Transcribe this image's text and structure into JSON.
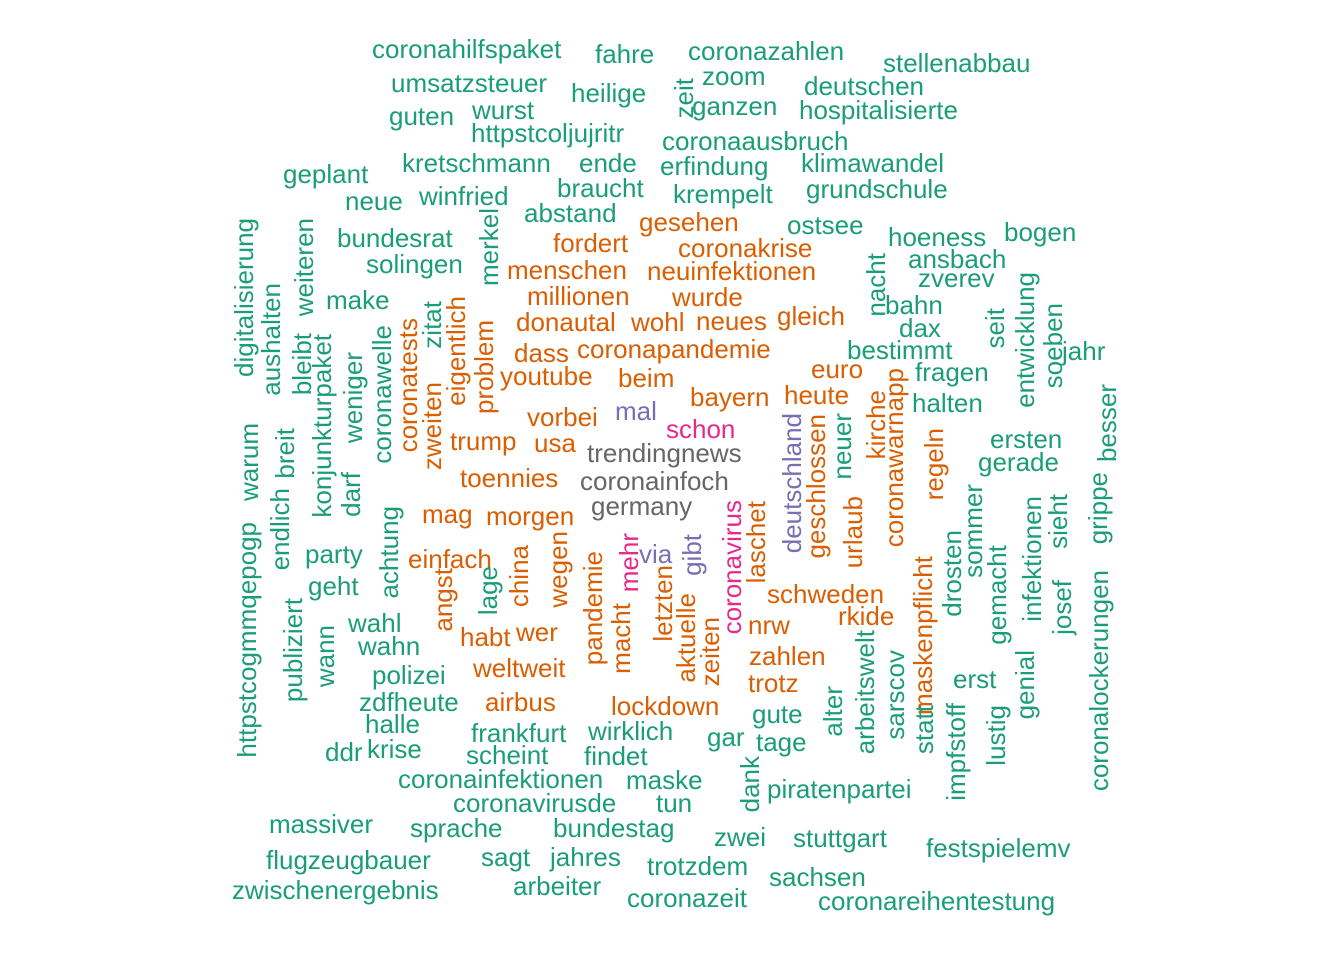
{
  "colors": {
    "green": "#1B9E77",
    "orange": "#D95F02",
    "purple": "#7570B3",
    "pink": "#E7298A",
    "gray": "#666666"
  },
  "words": [
    "coronahilfspaket",
    "fahre",
    "coronazahlen",
    "stellenabbau",
    "umsatzsteuer",
    "zoom",
    "heilige",
    "deutschen",
    "zeit",
    "wurst",
    "ganzen",
    "hospitalisierte",
    "guten",
    "httpstcoljujritr",
    "coronaausbruch",
    "kretschmann",
    "ende",
    "erfindung",
    "klimawandel",
    "geplant",
    "braucht",
    "krempelt",
    "grundschule",
    "neue",
    "winfried",
    "abstand",
    "gesehen",
    "ostsee",
    "hoeness",
    "bogen",
    "bundesrat",
    "fordert",
    "coronakrise",
    "digitalisierung",
    "merkel",
    "ansbach",
    "weiteren",
    "solingen",
    "menschen",
    "neuinfektionen",
    "nacht",
    "zverev",
    "aushalten",
    "make",
    "millionen",
    "wurde",
    "bahn",
    "entwicklung",
    "bleibt",
    "donautal",
    "wohl",
    "neues",
    "gleich",
    "dax",
    "seit",
    "soeben",
    "konjunkturpaket",
    "zitat",
    "eigentlich",
    "dass",
    "coronapandemie",
    "bestimmt",
    "jahr",
    "coronawelle",
    "coronatests",
    "problem",
    "youtube",
    "euro",
    "fragen",
    "weniger",
    "beim",
    "bayern",
    "heute",
    "halten",
    "zweiten",
    "vorbei",
    "mal",
    "coronawarnapp",
    "besser",
    "warum",
    "trump",
    "usa",
    "schon",
    "kirche",
    "ersten",
    "breit",
    "trendingnews",
    "regeln",
    "gerade",
    "toennies",
    "deutschland",
    "geschlossen",
    "darf",
    "coronainfoch",
    "neuer",
    "germany",
    "grippe",
    "mag",
    "morgen",
    "laschet",
    "urlaub",
    "httpstcogmmqepogp",
    "endlich",
    "achtung",
    "coronavirus",
    "infektionen",
    "sieht",
    "sommer",
    "drosten",
    "party",
    "einfach",
    "gibt",
    "via",
    "mehr",
    "wegen",
    "china",
    "gemacht",
    "geht",
    "lage",
    "angst",
    "pandemie",
    "schweden",
    "coronalockerungen",
    "maskenpflicht",
    "publiziert",
    "wahl",
    "letzten",
    "rkide",
    "josef",
    "wann",
    "habt",
    "wer",
    "macht",
    "aktuelle",
    "zeiten",
    "nrw",
    "wahn",
    "zahlen",
    "arbeitswelt",
    "weltweit",
    "sarscov",
    "genial",
    "polizei",
    "trotz",
    "erst",
    "zdfheute",
    "airbus",
    "alter",
    "halle",
    "lockdown",
    "statt",
    "impfstoff",
    "lustig",
    "gute",
    "frankfurt",
    "wirklich",
    "ddr",
    "krise",
    "gar",
    "tage",
    "scheint",
    "findet",
    "coronainfektionen",
    "maske",
    "dank",
    "piratenpartei",
    "coronavirusde",
    "tun",
    "massiver",
    "sprache",
    "bundestag",
    "zwei",
    "stuttgart",
    "festspielemv",
    "flugzeugbauer",
    "sagt",
    "jahres",
    "trotzdem",
    "sachsen",
    "zwischenergebnis",
    "arbeiter",
    "coronazeit",
    "coronareihentestung"
  ]
}
